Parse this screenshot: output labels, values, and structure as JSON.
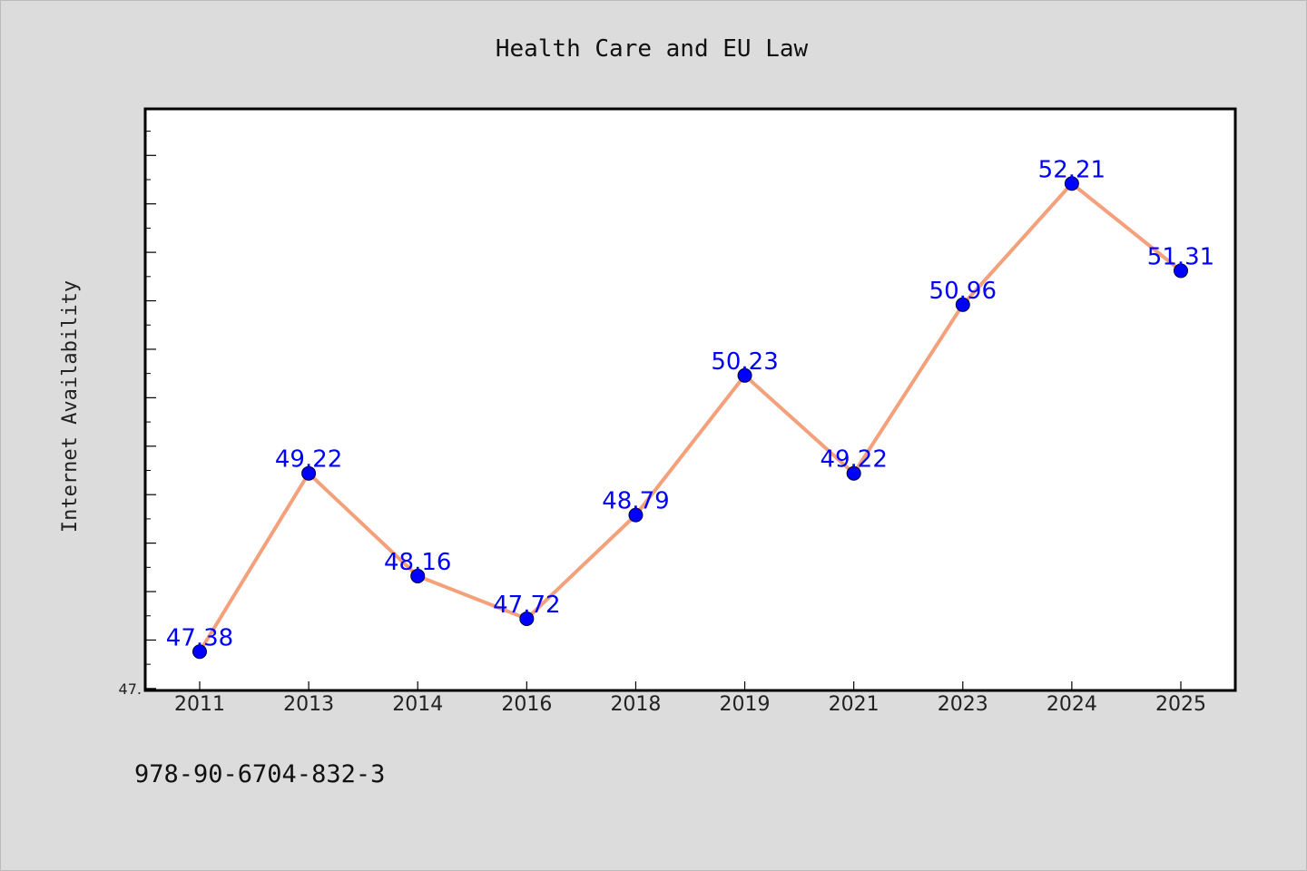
{
  "chart_data": {
    "type": "line",
    "title": "Health Care and EU Law",
    "xlabel": "",
    "ylabel": "Internet Availability",
    "categories": [
      "2011",
      "2013",
      "2014",
      "2016",
      "2018",
      "2019",
      "2021",
      "2023",
      "2024",
      "2025"
    ],
    "series": [
      {
        "values": [
          47.38,
          49.22,
          48.16,
          47.72,
          48.79,
          50.23,
          49.22,
          50.96,
          52.21,
          51.31
        ],
        "labels": [
          "47.38",
          "49.22",
          "48.16",
          "47.72",
          "48.79",
          "50.23",
          "49.22",
          "50.96",
          "52.21",
          "51.31"
        ]
      }
    ],
    "ylim": [
      46.98,
      52.98
    ],
    "yticks": [
      47.0,
      47.5,
      48.0,
      48.5,
      49.0,
      49.5,
      50.0,
      50.5,
      51.0,
      51.5,
      52.0,
      52.5
    ],
    "ytick_labels": [
      "47.",
      "",
      "",
      "",
      "",
      "",
      "",
      "",
      "",
      "",
      "",
      ""
    ],
    "colors": {
      "line": "#f4a07a",
      "marker": "#0000ff",
      "label": "#0000ff"
    },
    "grid": false,
    "legend": "none"
  },
  "footer": {
    "isbn": "978-90-6704-832-3"
  }
}
